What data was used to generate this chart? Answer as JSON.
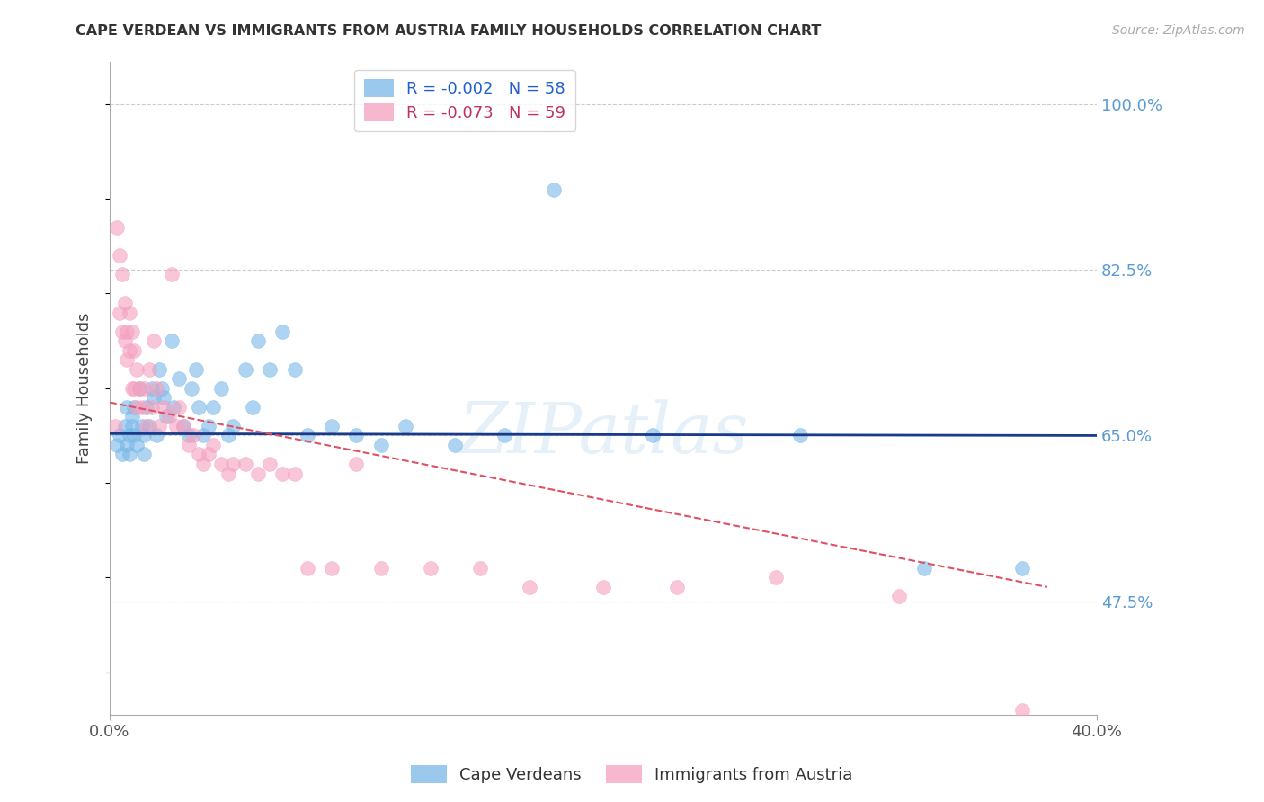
{
  "title": "CAPE VERDEAN VS IMMIGRANTS FROM AUSTRIA FAMILY HOUSEHOLDS CORRELATION CHART",
  "source": "Source: ZipAtlas.com",
  "ylabel_label": "Family Households",
  "ylabel_ticks": [
    47.5,
    65.0,
    82.5,
    100.0
  ],
  "xlim": [
    0.0,
    0.4
  ],
  "ylim": [
    0.355,
    1.045
  ],
  "legend_blue_r": "R = -0.002",
  "legend_blue_n": "N = 58",
  "legend_pink_r": "R = -0.073",
  "legend_pink_n": "N = 59",
  "blue_color": "#7ab8e8",
  "pink_color": "#f5a0c0",
  "trend_blue_color": "#1a3a8a",
  "trend_pink_color": "#e05060",
  "watermark": "ZIPatlas",
  "blue_scatter_x": [
    0.003,
    0.004,
    0.005,
    0.006,
    0.007,
    0.007,
    0.008,
    0.008,
    0.009,
    0.009,
    0.01,
    0.01,
    0.011,
    0.012,
    0.013,
    0.014,
    0.014,
    0.015,
    0.016,
    0.017,
    0.018,
    0.019,
    0.02,
    0.021,
    0.022,
    0.023,
    0.025,
    0.026,
    0.028,
    0.03,
    0.032,
    0.033,
    0.035,
    0.036,
    0.038,
    0.04,
    0.042,
    0.045,
    0.048,
    0.05,
    0.055,
    0.058,
    0.06,
    0.065,
    0.07,
    0.075,
    0.08,
    0.09,
    0.1,
    0.11,
    0.12,
    0.14,
    0.16,
    0.18,
    0.22,
    0.28,
    0.33,
    0.37
  ],
  "blue_scatter_y": [
    0.64,
    0.65,
    0.63,
    0.66,
    0.68,
    0.64,
    0.65,
    0.63,
    0.66,
    0.67,
    0.68,
    0.65,
    0.64,
    0.7,
    0.66,
    0.65,
    0.63,
    0.68,
    0.66,
    0.7,
    0.69,
    0.65,
    0.72,
    0.7,
    0.69,
    0.67,
    0.75,
    0.68,
    0.71,
    0.66,
    0.65,
    0.7,
    0.72,
    0.68,
    0.65,
    0.66,
    0.68,
    0.7,
    0.65,
    0.66,
    0.72,
    0.68,
    0.75,
    0.72,
    0.76,
    0.72,
    0.65,
    0.66,
    0.65,
    0.64,
    0.66,
    0.64,
    0.65,
    0.91,
    0.65,
    0.65,
    0.51,
    0.51
  ],
  "pink_scatter_x": [
    0.002,
    0.003,
    0.004,
    0.004,
    0.005,
    0.005,
    0.006,
    0.006,
    0.007,
    0.007,
    0.008,
    0.008,
    0.009,
    0.009,
    0.01,
    0.01,
    0.011,
    0.011,
    0.012,
    0.013,
    0.014,
    0.015,
    0.016,
    0.017,
    0.018,
    0.019,
    0.02,
    0.022,
    0.024,
    0.025,
    0.027,
    0.028,
    0.03,
    0.032,
    0.034,
    0.036,
    0.038,
    0.04,
    0.042,
    0.045,
    0.048,
    0.05,
    0.055,
    0.06,
    0.065,
    0.07,
    0.075,
    0.08,
    0.09,
    0.1,
    0.11,
    0.13,
    0.15,
    0.17,
    0.2,
    0.23,
    0.27,
    0.32,
    0.37
  ],
  "pink_scatter_y": [
    0.66,
    0.87,
    0.78,
    0.84,
    0.82,
    0.76,
    0.79,
    0.75,
    0.76,
    0.73,
    0.78,
    0.74,
    0.7,
    0.76,
    0.7,
    0.74,
    0.68,
    0.72,
    0.7,
    0.68,
    0.7,
    0.66,
    0.72,
    0.68,
    0.75,
    0.7,
    0.66,
    0.68,
    0.67,
    0.82,
    0.66,
    0.68,
    0.66,
    0.64,
    0.65,
    0.63,
    0.62,
    0.63,
    0.64,
    0.62,
    0.61,
    0.62,
    0.62,
    0.61,
    0.62,
    0.61,
    0.61,
    0.51,
    0.51,
    0.62,
    0.51,
    0.51,
    0.51,
    0.49,
    0.49,
    0.49,
    0.5,
    0.48,
    0.36
  ]
}
